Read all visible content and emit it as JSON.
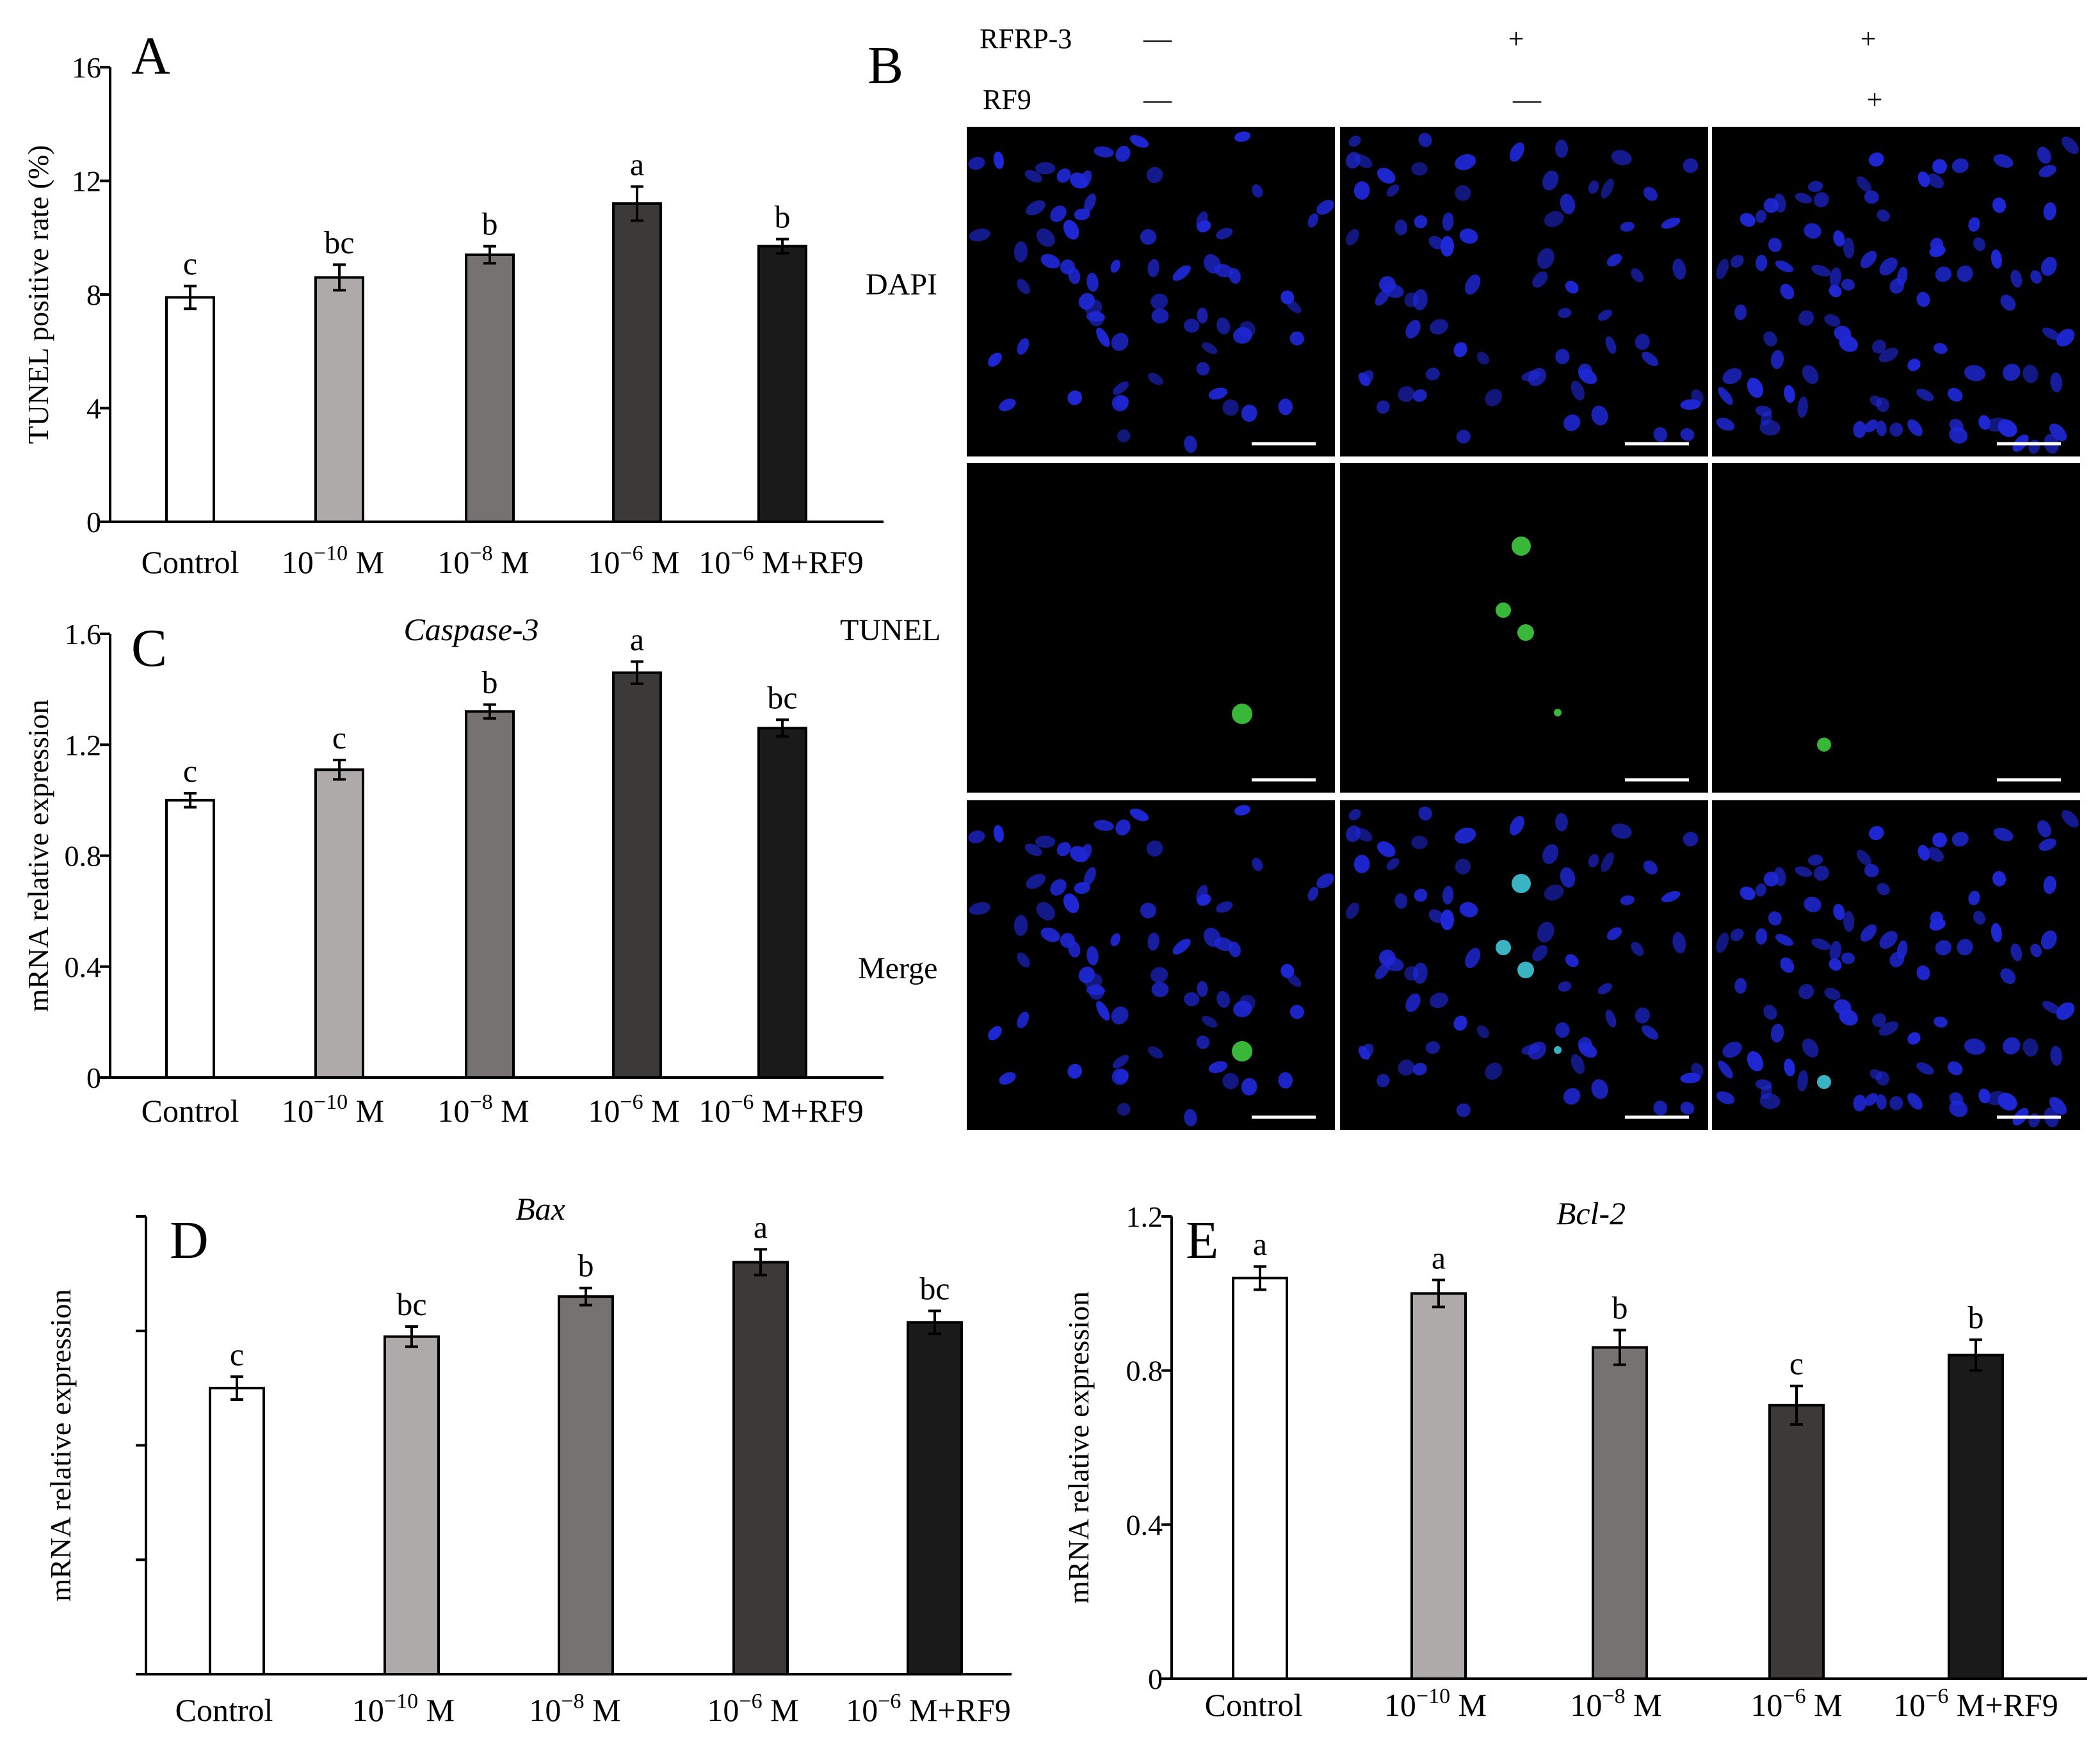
{
  "figure": {
    "colors": {
      "bar_fills": [
        "#ffffff",
        "#adaaa9",
        "#767271",
        "#3b3a39",
        "#1a1a1a"
      ],
      "axis": "#000000",
      "micro_bg": "#000000",
      "nuclei_blue": "#1f28d8",
      "tunel_green": "#3ecb3e",
      "merge_cyan": "#40c8d8",
      "scale_bar": "#ffffff"
    },
    "panel_b": {
      "letter": "B",
      "treatments": [
        {
          "name": "RFRP-3",
          "values": [
            "—",
            "+",
            "+"
          ]
        },
        {
          "name": "RF9",
          "values": [
            "—",
            "—",
            "+"
          ]
        }
      ],
      "rows": [
        "DAPI",
        "TUNEL",
        "Merge"
      ]
    }
  },
  "chart_data": [
    {
      "panel": "A",
      "type": "bar",
      "title": "",
      "xlabel": "",
      "ylabel": "TUNEL positive rate (%)",
      "categories": [
        {
          "base": "Control",
          "exp": "",
          "rest": ""
        },
        {
          "base": "10",
          "exp": "−10",
          "rest": " M"
        },
        {
          "base": "10",
          "exp": "−8",
          "rest": " M"
        },
        {
          "base": "10",
          "exp": "−6",
          "rest": " M"
        },
        {
          "base": "10",
          "exp": "−6",
          "rest": " M+RF9"
        }
      ],
      "values": [
        7.9,
        8.6,
        9.4,
        11.2,
        9.7
      ],
      "errors": [
        0.4,
        0.45,
        0.3,
        0.6,
        0.25
      ],
      "letters": [
        "c",
        "bc",
        "b",
        "a",
        "b"
      ],
      "ylim": [
        0,
        16
      ],
      "yticks": [
        0,
        4,
        8,
        12,
        16
      ],
      "ytick_labels": [
        "0",
        "4",
        "8",
        "12",
        "16"
      ],
      "grid": false
    },
    {
      "panel": "C",
      "type": "bar",
      "title": "Caspase-3",
      "xlabel": "",
      "ylabel": "mRNA relative expression",
      "categories": [
        {
          "base": "Control",
          "exp": "",
          "rest": ""
        },
        {
          "base": "10",
          "exp": "−10",
          "rest": " M"
        },
        {
          "base": "10",
          "exp": "−8",
          "rest": " M"
        },
        {
          "base": "10",
          "exp": "−6",
          "rest": " M"
        },
        {
          "base": "10",
          "exp": "−6",
          "rest": " M+RF9"
        }
      ],
      "values": [
        1.0,
        1.11,
        1.32,
        1.46,
        1.26
      ],
      "errors": [
        0.025,
        0.035,
        0.025,
        0.04,
        0.03
      ],
      "letters": [
        "c",
        "c",
        "b",
        "a",
        "bc"
      ],
      "ylim": [
        0,
        1.6
      ],
      "yticks": [
        0,
        0.4,
        0.8,
        1.2,
        1.6
      ],
      "ytick_labels": [
        "0",
        "0.4",
        "0.8",
        "1.2",
        "1.6"
      ],
      "grid": false
    },
    {
      "panel": "D",
      "type": "bar",
      "title": "Bax",
      "xlabel": "",
      "ylabel": "mRNA relative expression",
      "categories": [
        {
          "base": "Control",
          "exp": "",
          "rest": ""
        },
        {
          "base": "10",
          "exp": "−10",
          "rest": " M"
        },
        {
          "base": "10",
          "exp": "−8",
          "rest": " M"
        },
        {
          "base": "10",
          "exp": "−6",
          "rest": " M"
        },
        {
          "base": "10",
          "exp": "−6",
          "rest": " M+RF9"
        }
      ],
      "values": [
        1.0,
        1.18,
        1.32,
        1.44,
        1.23
      ],
      "errors": [
        0.04,
        0.035,
        0.03,
        0.045,
        0.04
      ],
      "letters": [
        "c",
        "bc",
        "b",
        "a",
        "bc"
      ],
      "ylim": [
        0,
        1.6
      ],
      "yticks": [
        0,
        0.4,
        0.8,
        1.2,
        1.6
      ],
      "ytick_labels": [
        "",
        "",
        "",
        "",
        ""
      ],
      "grid": false
    },
    {
      "panel": "E",
      "type": "bar",
      "title": "Bcl-2",
      "xlabel": "",
      "ylabel": "mRNA relative expression",
      "categories": [
        {
          "base": "Control",
          "exp": "",
          "rest": ""
        },
        {
          "base": "10",
          "exp": "−10",
          "rest": " M"
        },
        {
          "base": "10",
          "exp": "−8",
          "rest": " M"
        },
        {
          "base": "10",
          "exp": "−6",
          "rest": " M"
        },
        {
          "base": "10",
          "exp": "−6",
          "rest": " M+RF9"
        }
      ],
      "values": [
        1.04,
        1.0,
        0.86,
        0.71,
        0.84
      ],
      "errors": [
        0.03,
        0.035,
        0.045,
        0.05,
        0.04
      ],
      "letters": [
        "a",
        "a",
        "b",
        "c",
        "b"
      ],
      "ylim": [
        0,
        1.2
      ],
      "yticks": [
        0,
        0.4,
        0.8,
        1.2
      ],
      "ytick_labels": [
        "0",
        "0.4",
        "0.8",
        "1.2"
      ],
      "grid": false
    }
  ]
}
